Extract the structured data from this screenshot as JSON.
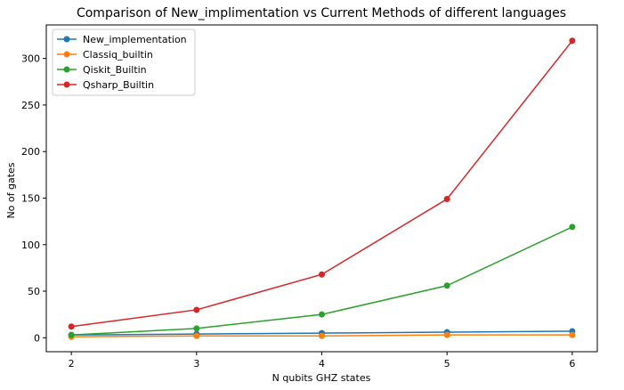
{
  "chart_data": {
    "type": "line",
    "title": "Comparison of New_implimentation vs Current Methods of different languages",
    "xlabel": "N qubits GHZ states",
    "ylabel": "No of gates",
    "x": [
      2,
      3,
      4,
      5,
      6
    ],
    "xlim": [
      1.8,
      6.2
    ],
    "ylim": [
      -15,
      336
    ],
    "xticks": [
      2,
      3,
      4,
      5,
      6
    ],
    "yticks": [
      0,
      50,
      100,
      150,
      200,
      250,
      300
    ],
    "grid": false,
    "legend_position": "top-left",
    "series": [
      {
        "name": "New_implementation",
        "color": "#1f77b4",
        "values": [
          3,
          4,
          5,
          6,
          7
        ]
      },
      {
        "name": "Classiq_builtin",
        "color": "#ff7f0e",
        "values": [
          1,
          2,
          2,
          3,
          3
        ]
      },
      {
        "name": "Qiskit_Builtin",
        "color": "#2ca02c",
        "values": [
          3,
          10,
          25,
          56,
          119
        ]
      },
      {
        "name": "Qsharp_Builtin",
        "color": "#d62728",
        "values": [
          12,
          30,
          68,
          149,
          319
        ]
      }
    ]
  }
}
